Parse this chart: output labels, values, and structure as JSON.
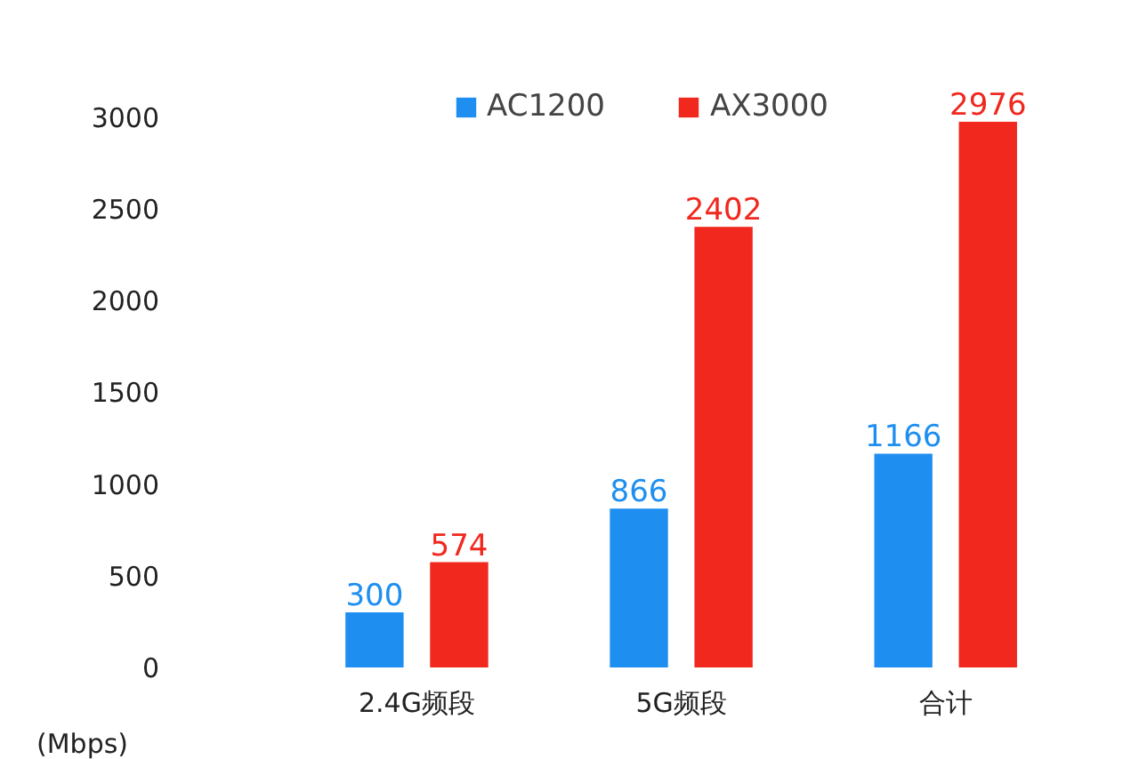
{
  "chart_data": {
    "type": "bar",
    "categories": [
      "2.4G频段",
      "5G频段",
      "合计"
    ],
    "series": [
      {
        "name": "AC1200",
        "color": "#1e8ff0",
        "values": [
          300,
          866,
          1166
        ]
      },
      {
        "name": "AX3000",
        "color": "#f0281e",
        "values": [
          574,
          2402,
          2976
        ]
      }
    ],
    "ylabel": "(Mbps)",
    "ylim": [
      0,
      3150
    ],
    "yticks": [
      0,
      500,
      1000,
      1500,
      2000,
      2500,
      3000
    ],
    "data_labels": true,
    "legend": "top",
    "grid": false
  }
}
